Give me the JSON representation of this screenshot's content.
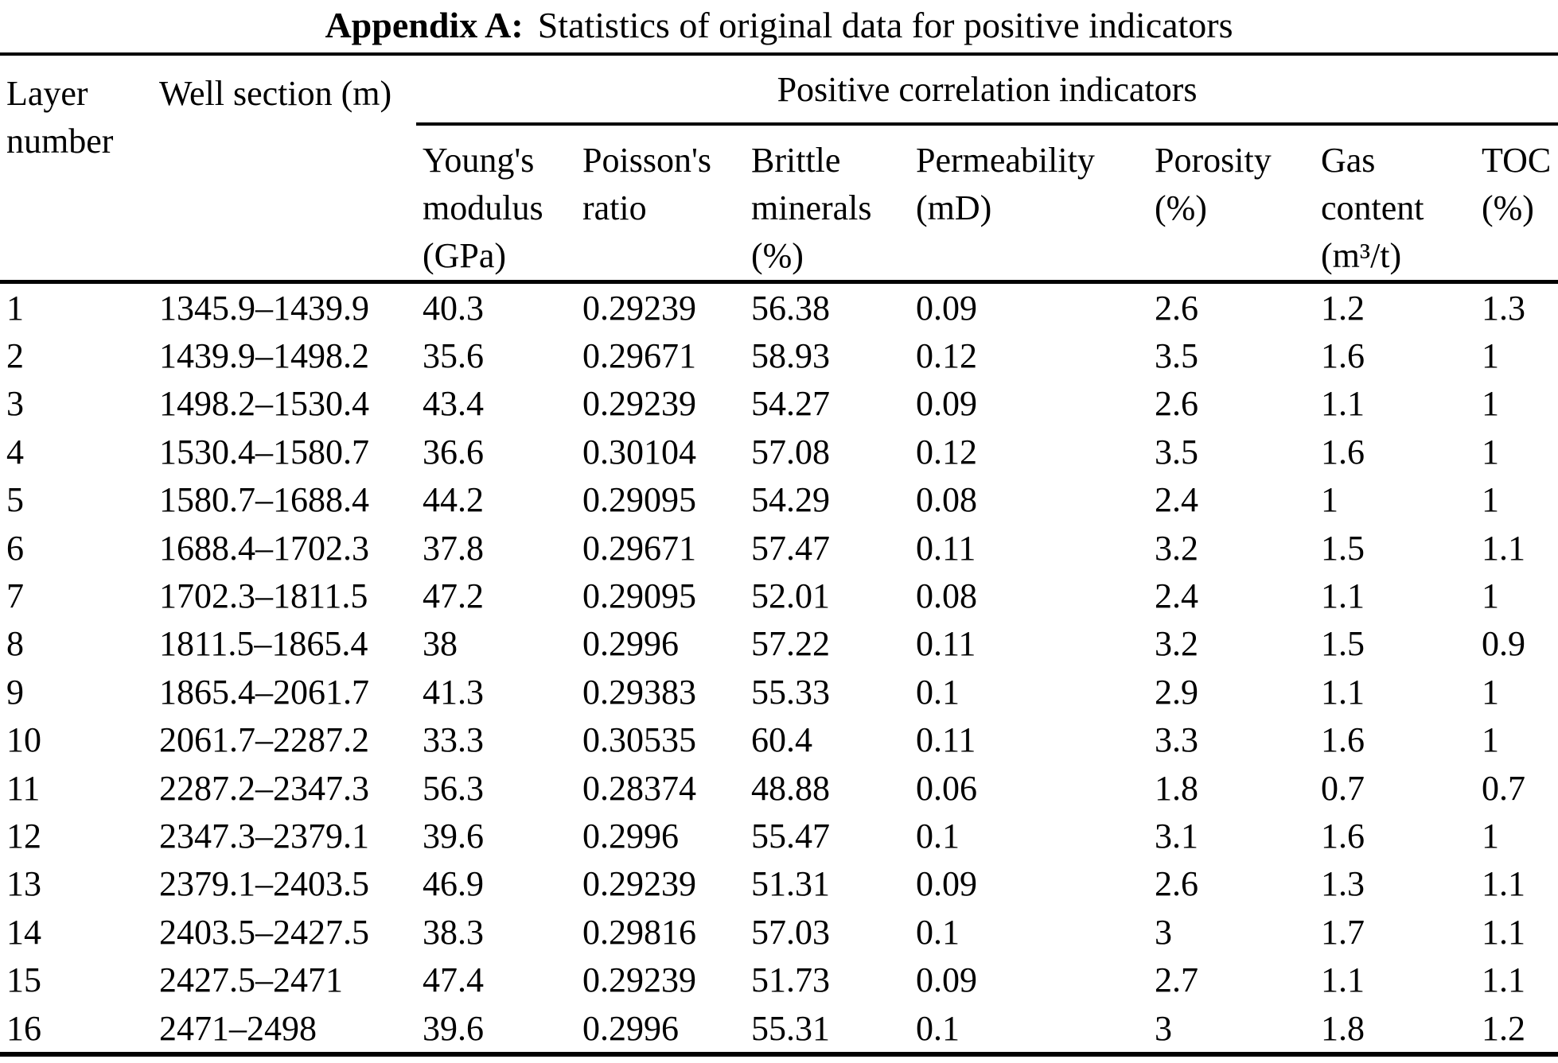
{
  "title": {
    "label": "Appendix A:",
    "text": "Statistics of original data for positive indicators"
  },
  "table": {
    "header": {
      "layer": "Layer number",
      "well": "Well section (m)",
      "group": "Positive correlation indicators",
      "columns": [
        "Young's modulus (GPa)",
        "Poisson's ratio",
        "Brittle minerals (%)",
        "Permeability (mD)",
        "Porosity (%)",
        "Gas content (m³/t)",
        "TOC (%)"
      ]
    },
    "rows": [
      {
        "layer": "1",
        "well": "1345.9–1439.9",
        "youngs": "40.3",
        "poisson": "0.29239",
        "brittle": "56.38",
        "perm": "0.09",
        "porosity": "2.6",
        "gas": "1.2",
        "toc": "1.3"
      },
      {
        "layer": "2",
        "well": "1439.9–1498.2",
        "youngs": "35.6",
        "poisson": "0.29671",
        "brittle": "58.93",
        "perm": "0.12",
        "porosity": "3.5",
        "gas": "1.6",
        "toc": "1"
      },
      {
        "layer": "3",
        "well": "1498.2–1530.4",
        "youngs": "43.4",
        "poisson": "0.29239",
        "brittle": "54.27",
        "perm": "0.09",
        "porosity": "2.6",
        "gas": "1.1",
        "toc": "1"
      },
      {
        "layer": "4",
        "well": "1530.4–1580.7",
        "youngs": "36.6",
        "poisson": "0.30104",
        "brittle": "57.08",
        "perm": "0.12",
        "porosity": "3.5",
        "gas": "1.6",
        "toc": "1"
      },
      {
        "layer": "5",
        "well": "1580.7–1688.4",
        "youngs": "44.2",
        "poisson": "0.29095",
        "brittle": "54.29",
        "perm": "0.08",
        "porosity": "2.4",
        "gas": "1",
        "toc": "1"
      },
      {
        "layer": "6",
        "well": "1688.4–1702.3",
        "youngs": "37.8",
        "poisson": "0.29671",
        "brittle": "57.47",
        "perm": "0.11",
        "porosity": "3.2",
        "gas": "1.5",
        "toc": "1.1"
      },
      {
        "layer": "7",
        "well": "1702.3–1811.5",
        "youngs": "47.2",
        "poisson": "0.29095",
        "brittle": "52.01",
        "perm": "0.08",
        "porosity": "2.4",
        "gas": "1.1",
        "toc": "1"
      },
      {
        "layer": "8",
        "well": "1811.5–1865.4",
        "youngs": "38",
        "poisson": "0.2996",
        "brittle": "57.22",
        "perm": "0.11",
        "porosity": "3.2",
        "gas": "1.5",
        "toc": "0.9"
      },
      {
        "layer": "9",
        "well": "1865.4–2061.7",
        "youngs": "41.3",
        "poisson": "0.29383",
        "brittle": "55.33",
        "perm": "0.1",
        "porosity": "2.9",
        "gas": "1.1",
        "toc": "1"
      },
      {
        "layer": "10",
        "well": "2061.7–2287.2",
        "youngs": "33.3",
        "poisson": "0.30535",
        "brittle": "60.4",
        "perm": "0.11",
        "porosity": "3.3",
        "gas": "1.6",
        "toc": "1"
      },
      {
        "layer": "11",
        "well": "2287.2–2347.3",
        "youngs": "56.3",
        "poisson": "0.28374",
        "brittle": "48.88",
        "perm": "0.06",
        "porosity": "1.8",
        "gas": "0.7",
        "toc": "0.7"
      },
      {
        "layer": "12",
        "well": "2347.3–2379.1",
        "youngs": "39.6",
        "poisson": "0.2996",
        "brittle": "55.47",
        "perm": "0.1",
        "porosity": "3.1",
        "gas": "1.6",
        "toc": "1"
      },
      {
        "layer": "13",
        "well": "2379.1–2403.5",
        "youngs": "46.9",
        "poisson": "0.29239",
        "brittle": "51.31",
        "perm": "0.09",
        "porosity": "2.6",
        "gas": "1.3",
        "toc": "1.1"
      },
      {
        "layer": "14",
        "well": "2403.5–2427.5",
        "youngs": "38.3",
        "poisson": "0.29816",
        "brittle": "57.03",
        "perm": "0.1",
        "porosity": "3",
        "gas": "1.7",
        "toc": "1.1"
      },
      {
        "layer": "15",
        "well": "2427.5–2471",
        "youngs": "47.4",
        "poisson": "0.29239",
        "brittle": "51.73",
        "perm": "0.09",
        "porosity": "2.7",
        "gas": "1.1",
        "toc": "1.1"
      },
      {
        "layer": "16",
        "well": "2471–2498",
        "youngs": "39.6",
        "poisson": "0.2996",
        "brittle": "55.31",
        "perm": "0.1",
        "porosity": "3",
        "gas": "1.8",
        "toc": "1.2"
      }
    ]
  }
}
